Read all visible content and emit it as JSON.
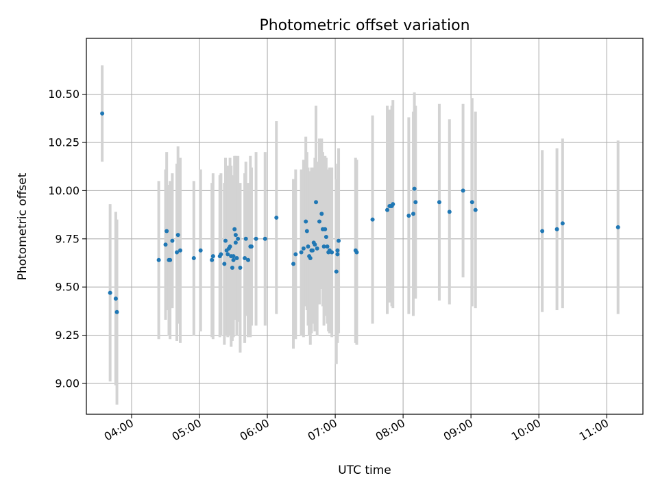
{
  "chart_data": {
    "type": "scatter",
    "title": "Photometric offset variation",
    "xlabel": "UTC time",
    "ylabel": "Photometric offset",
    "xlim": [
      "03:20",
      "11:32"
    ],
    "ylim": [
      8.84,
      10.79
    ],
    "grid": true,
    "x_ticks": [
      "04:00",
      "05:00",
      "06:00",
      "07:00",
      "08:00",
      "09:00",
      "10:00",
      "11:00"
    ],
    "y_ticks": [
      "9.00",
      "9.25",
      "9.50",
      "9.75",
      "10.00",
      "10.25",
      "10.50"
    ],
    "colors": {
      "point": "#1f77b4",
      "errorbar": "#d3d3d3"
    },
    "series": [
      {
        "x": [
          "03:34",
          "03:41",
          "03:46",
          "03:47",
          "04:24",
          "04:30",
          "04:31",
          "04:33",
          "04:34",
          "04:36",
          "04:40",
          "04:41",
          "04:43",
          "04:55",
          "05:01",
          "05:11",
          "05:12",
          "05:18",
          "05:19",
          "05:22",
          "05:23",
          "05:24",
          "05:25",
          "05:26",
          "05:27",
          "05:28",
          "05:29",
          "05:30",
          "05:30",
          "05:31",
          "05:32",
          "05:32",
          "05:33",
          "05:34",
          "05:36",
          "05:40",
          "05:41",
          "05:43",
          "05:45",
          "05:46",
          "05:50",
          "05:58",
          "06:08",
          "06:23",
          "06:25",
          "06:30",
          "06:32",
          "06:34",
          "06:35",
          "06:36",
          "06:37",
          "06:38",
          "06:39",
          "06:40",
          "06:41",
          "06:42",
          "06:43",
          "06:44",
          "06:46",
          "06:48",
          "06:49",
          "06:50",
          "06:51",
          "06:52",
          "06:53",
          "06:54",
          "06:55",
          "06:57",
          "07:01",
          "07:02",
          "07:02",
          "07:03",
          "07:18",
          "07:19",
          "07:33",
          "07:46",
          "07:48",
          "07:49",
          "07:50",
          "07:51",
          "08:05",
          "08:09",
          "08:10",
          "08:11",
          "08:32",
          "08:41",
          "08:53",
          "09:01",
          "09:04",
          "10:03",
          "10:16",
          "10:21",
          "11:10"
        ],
        "y": [
          10.4,
          9.47,
          9.44,
          9.37,
          9.64,
          9.72,
          9.79,
          9.64,
          9.64,
          9.74,
          9.68,
          9.77,
          9.69,
          9.65,
          9.69,
          9.64,
          9.66,
          9.66,
          9.67,
          9.62,
          9.74,
          9.69,
          9.67,
          9.7,
          9.71,
          9.66,
          9.6,
          9.64,
          9.66,
          9.8,
          9.73,
          9.77,
          9.65,
          9.75,
          9.6,
          9.65,
          9.75,
          9.64,
          9.71,
          9.71,
          9.75,
          9.75,
          9.86,
          9.62,
          9.67,
          9.68,
          9.7,
          9.84,
          9.79,
          9.71,
          9.66,
          9.65,
          9.69,
          9.69,
          9.73,
          9.72,
          9.94,
          9.7,
          9.84,
          9.88,
          9.8,
          9.71,
          9.8,
          9.76,
          9.71,
          9.68,
          9.69,
          9.68,
          9.58,
          9.67,
          9.69,
          9.74,
          9.69,
          9.68,
          9.85,
          9.9,
          9.92,
          9.92,
          9.92,
          9.93,
          9.87,
          9.88,
          10.01,
          9.94,
          9.94,
          9.89,
          10.0,
          9.94,
          9.9,
          9.79,
          9.8,
          9.83,
          9.81
        ],
        "err": [
          0.25,
          0.46,
          0.45,
          0.48,
          0.41,
          0.39,
          0.41,
          0.39,
          0.41,
          0.35,
          0.46,
          0.46,
          0.48,
          0.4,
          0.42,
          0.4,
          0.43,
          0.42,
          0.42,
          0.42,
          0.43,
          0.44,
          0.43,
          0.43,
          0.46,
          0.47,
          0.38,
          0.4,
          0.42,
          0.38,
          0.4,
          0.41,
          0.4,
          0.43,
          0.44,
          0.44,
          0.4,
          0.4,
          0.47,
          0.41,
          0.45,
          0.45,
          0.5,
          0.44,
          0.44,
          0.43,
          0.46,
          0.44,
          0.41,
          0.41,
          0.41,
          0.45,
          0.43,
          0.38,
          0.39,
          0.45,
          0.5,
          0.45,
          0.43,
          0.39,
          0.4,
          0.41,
          0.38,
          0.41,
          0.4,
          0.41,
          0.43,
          0.44,
          0.48,
          0.46,
          0.45,
          0.48,
          0.48,
          0.48,
          0.54,
          0.54,
          0.5,
          0.48,
          0.52,
          0.54,
          0.51,
          0.53,
          0.5,
          0.5,
          0.51,
          0.48,
          0.45,
          0.54,
          0.51,
          0.42,
          0.42,
          0.44,
          0.45
        ]
      }
    ]
  }
}
